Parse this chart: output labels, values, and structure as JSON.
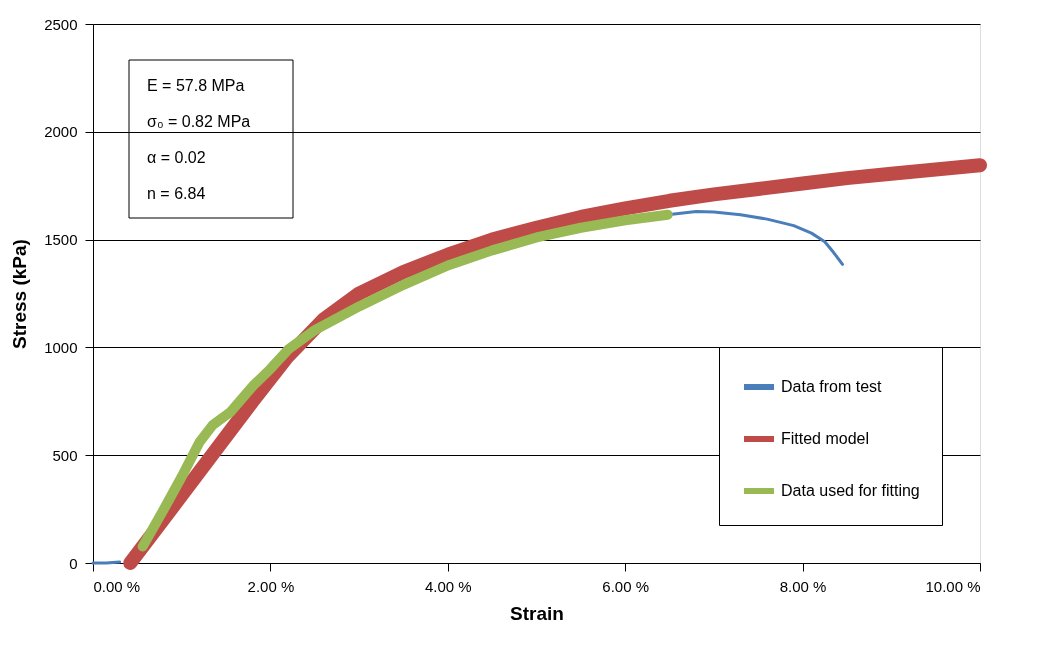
{
  "chart_data": {
    "type": "line",
    "xlabel": "Strain",
    "ylabel": "Stress (kPa)",
    "xlim": [
      0,
      10
    ],
    "ylim": [
      0,
      2500
    ],
    "xticks": [
      {
        "value": 0,
        "label": "0.00 %"
      },
      {
        "value": 2,
        "label": "2.00 %"
      },
      {
        "value": 4,
        "label": "4.00 %"
      },
      {
        "value": 6,
        "label": "6.00 %"
      },
      {
        "value": 8,
        "label": "8.00 %"
      },
      {
        "value": 10,
        "label": "10.00 %"
      }
    ],
    "yticks": [
      0,
      500,
      1000,
      1500,
      2000,
      2500
    ],
    "grid": "y",
    "legend": "bottom right",
    "marker": "none",
    "line_style": "solid",
    "annotations": [
      "E = 57.8 MPa",
      "σ₀ = 0.82 MPa",
      "α = 0.02",
      "n = 6.84"
    ],
    "series": [
      {
        "name": "Data from test",
        "color": "#4a7ebb",
        "x": [
          0,
          0.15,
          0.3,
          0.56,
          0.8,
          1.0,
          1.2,
          1.35,
          1.55,
          1.8,
          2.0,
          2.2,
          2.5,
          3.0,
          3.5,
          4.0,
          4.5,
          5.0,
          5.5,
          6.0,
          6.48,
          6.8,
          7.0,
          7.3,
          7.6,
          7.9,
          8.1,
          8.25,
          8.35,
          8.45
        ],
        "values": [
          0,
          0,
          5,
          null,
          null,
          null,
          null,
          null,
          null,
          null,
          null,
          null,
          null,
          null,
          null,
          null,
          null,
          null,
          null,
          null,
          1615,
          1630,
          1628,
          1615,
          1595,
          1565,
          1530,
          1490,
          1440,
          1385
        ]
      },
      {
        "name": "Fitted model",
        "color": "#be4b48",
        "x": [
          0.42,
          0.9,
          1.34,
          1.8,
          2.2,
          2.6,
          3.0,
          3.5,
          4.0,
          4.5,
          5.0,
          5.5,
          6.0,
          6.5,
          7.0,
          7.5,
          8.0,
          8.5,
          9.0,
          9.5,
          10.0
        ],
        "values": [
          0,
          260,
          500,
          750,
          960,
          1130,
          1250,
          1350,
          1430,
          1500,
          1555,
          1605,
          1645,
          1680,
          1710,
          1735,
          1760,
          1785,
          1805,
          1825,
          1845
        ]
      },
      {
        "name": "Data used for fitting",
        "color": "#98b954",
        "x": [
          0.56,
          0.8,
          1.0,
          1.2,
          1.35,
          1.55,
          1.8,
          2.0,
          2.2,
          2.5,
          3.0,
          3.5,
          4.0,
          4.5,
          5.0,
          5.5,
          6.0,
          6.48
        ],
        "values": [
          77,
          250,
          400,
          560,
          640,
          700,
          820,
          900,
          990,
          1080,
          1190,
          1290,
          1380,
          1450,
          1510,
          1555,
          1590,
          1615
        ]
      }
    ]
  }
}
